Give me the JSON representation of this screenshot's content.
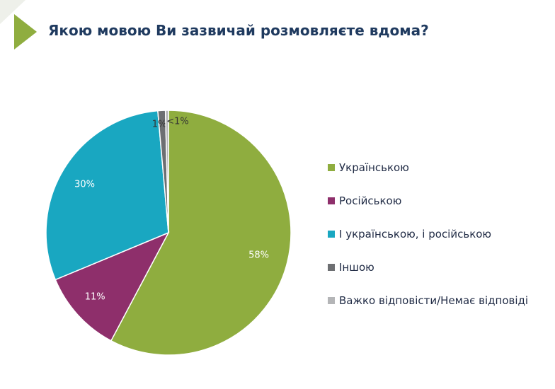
{
  "header": {
    "title": "Якою мовою Ви зазвичай розмовляєте вдома?"
  },
  "chart_data": {
    "type": "pie",
    "title": "Якою мовою Ви зазвичай розмовляєте вдома?",
    "legend_position": "right",
    "slices": [
      {
        "name": "Українською",
        "value": 58,
        "label": "58%",
        "color": "#8fad3f"
      },
      {
        "name": "Російською",
        "value": 11,
        "label": "11%",
        "color": "#8e2f6b"
      },
      {
        "name": "І українською, і російською",
        "value": 30,
        "label": "30%",
        "color": "#19a7c1"
      },
      {
        "name": "Іншою",
        "value": 1,
        "label": "1%",
        "color": "#6d6f72"
      },
      {
        "name": "Важко відповісти/Немає відповіді",
        "value": 0.4,
        "label": "<1%",
        "color": "#b4b5b7"
      }
    ]
  }
}
